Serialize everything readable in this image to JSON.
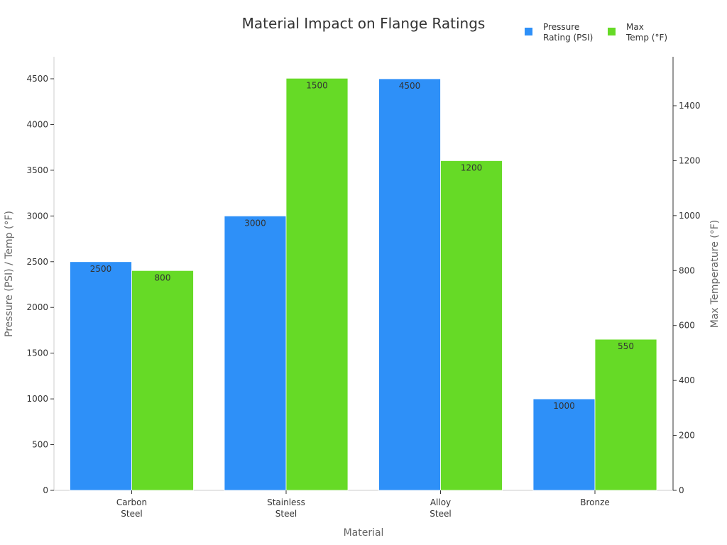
{
  "chart_data": {
    "type": "bar",
    "title": "Material Impact on Flange Ratings",
    "xlabel": "Material",
    "ylabel": "Pressure (PSI) / Temp (°F)",
    "y2label": "Max Temperature (°F)",
    "categories": [
      [
        "Carbon",
        "Steel"
      ],
      [
        "Stainless",
        "Steel"
      ],
      [
        "Alloy",
        "Steel"
      ],
      [
        "Bronze"
      ]
    ],
    "category_names": [
      "Carbon Steel",
      "Stainless Steel",
      "Alloy Steel",
      "Bronze"
    ],
    "series": [
      {
        "name": "Pressure Rating (PSI)",
        "legend_lines": [
          "Pressure",
          "Rating (PSI)"
        ],
        "axis": "left",
        "color": "#2e90f8",
        "values": [
          2500,
          3000,
          4500,
          1000
        ]
      },
      {
        "name": "Max Temp (°F)",
        "legend_lines": [
          "Max",
          "Temp (°F)"
        ],
        "axis": "right",
        "color": "#66da26",
        "values": [
          800,
          1500,
          1200,
          550
        ]
      }
    ],
    "ylim": [
      0,
      4740
    ],
    "y2lim": [
      0,
      1580
    ],
    "yticks": [
      0,
      500,
      1000,
      1500,
      2000,
      2500,
      3000,
      3500,
      4000,
      4500
    ],
    "y2ticks": [
      0,
      200,
      400,
      600,
      800,
      1000,
      1200,
      1400
    ],
    "legend_position": "top-right",
    "grid": false
  }
}
